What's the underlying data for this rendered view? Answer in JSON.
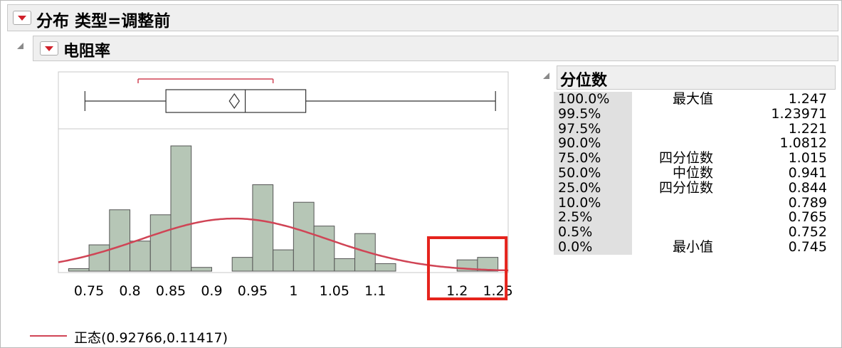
{
  "report": {
    "title": "分布 类型=调整前",
    "variable": "电阻率"
  },
  "quantiles": {
    "title": "分位数",
    "rows": [
      {
        "pct": "100.0%",
        "label": "最大值",
        "value": "1.247"
      },
      {
        "pct": "99.5%",
        "label": "",
        "value": "1.23971"
      },
      {
        "pct": "97.5%",
        "label": "",
        "value": "1.221"
      },
      {
        "pct": "90.0%",
        "label": "",
        "value": "1.0812"
      },
      {
        "pct": "75.0%",
        "label": "四分位数",
        "value": "1.015"
      },
      {
        "pct": "50.0%",
        "label": "中位数",
        "value": "0.941"
      },
      {
        "pct": "25.0%",
        "label": "四分位数",
        "value": "0.844"
      },
      {
        "pct": "10.0%",
        "label": "",
        "value": "0.789"
      },
      {
        "pct": "2.5%",
        "label": "",
        "value": "0.765"
      },
      {
        "pct": "0.5%",
        "label": "",
        "value": "0.752"
      },
      {
        "pct": "0.0%",
        "label": "最小值",
        "value": "0.745"
      }
    ]
  },
  "legend": {
    "label": "正态(0.92766,0.11417)",
    "color": "#d04455"
  },
  "colors": {
    "bar_fill": "#b6c6b6",
    "bar_stroke": "#555555",
    "curve": "#d04455",
    "highlight_box": "#e5231c",
    "dropdown_triangle": "#d0202a"
  },
  "chart_data": {
    "type": "bar",
    "description_type": "histogram",
    "x_ticks": [
      "0.75",
      "0.8",
      "0.85",
      "0.9",
      "0.95",
      "1",
      "1.05",
      "1.1",
      "1.2",
      "1.25"
    ],
    "x_tick_values": [
      0.75,
      0.8,
      0.85,
      0.9,
      0.95,
      1.0,
      1.05,
      1.1,
      1.2,
      1.25
    ],
    "xlim": [
      0.7125,
      1.2625
    ],
    "bin_width": 0.025,
    "bins": [
      {
        "start": 0.725,
        "height": 0.02
      },
      {
        "start": 0.75,
        "height": 0.21
      },
      {
        "start": 0.775,
        "height": 0.49
      },
      {
        "start": 0.8,
        "height": 0.24
      },
      {
        "start": 0.825,
        "height": 0.45
      },
      {
        "start": 0.85,
        "height": 1.0
      },
      {
        "start": 0.875,
        "height": 0.03
      },
      {
        "start": 0.9,
        "height": 0.0
      },
      {
        "start": 0.925,
        "height": 0.11
      },
      {
        "start": 0.95,
        "height": 0.69
      },
      {
        "start": 0.975,
        "height": 0.17
      },
      {
        "start": 1.0,
        "height": 0.55
      },
      {
        "start": 1.025,
        "height": 0.36
      },
      {
        "start": 1.05,
        "height": 0.1
      },
      {
        "start": 1.075,
        "height": 0.3
      },
      {
        "start": 1.1,
        "height": 0.06
      },
      {
        "start": 1.125,
        "height": 0.0
      },
      {
        "start": 1.15,
        "height": 0.0
      },
      {
        "start": 1.175,
        "height": 0.0
      },
      {
        "start": 1.2,
        "height": 0.09
      },
      {
        "start": 1.225,
        "height": 0.11
      }
    ],
    "normal_curve": {
      "mean": 0.92766,
      "sd": 0.11417,
      "peak_height": 0.42
    },
    "boxplot": {
      "min": 0.745,
      "q1": 0.844,
      "median": 0.941,
      "q3": 1.015,
      "max": 1.247,
      "mean": 0.92766,
      "shortest_half": [
        0.81,
        0.975
      ]
    },
    "highlight": {
      "from": 1.165,
      "to": 1.26
    }
  }
}
